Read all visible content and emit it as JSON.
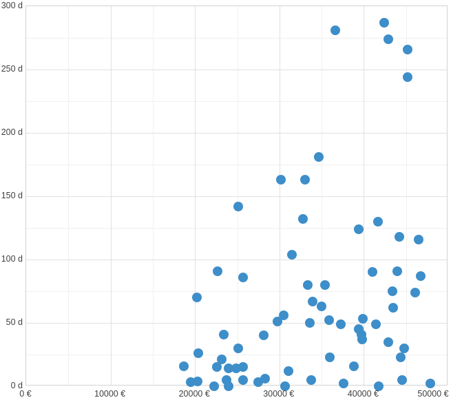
{
  "chart_data": {
    "type": "scatter",
    "title": "",
    "xlabel": "",
    "ylabel": "",
    "x_unit": "€",
    "y_unit": "d",
    "xlim": [
      0,
      50000
    ],
    "ylim": [
      0,
      300
    ],
    "x_major_step": 10000,
    "x_minor_step": 5000,
    "y_major_step": 50,
    "y_minor_step": 25,
    "grid": true,
    "legend": "none",
    "x_tick_labels": [
      "0 €",
      "10000 €",
      "20000 €",
      "30000 €",
      "40000 €",
      "50000 €"
    ],
    "y_tick_labels": [
      "0 d",
      "50 d",
      "100 d",
      "150 d",
      "200 d",
      "250 d",
      "300 d"
    ],
    "point_color": "#3d8ec9",
    "points": [
      [
        18700,
        16
      ],
      [
        19500,
        3
      ],
      [
        20200,
        70
      ],
      [
        20300,
        4
      ],
      [
        20400,
        26
      ],
      [
        22300,
        0
      ],
      [
        22600,
        15
      ],
      [
        22700,
        91
      ],
      [
        23200,
        21
      ],
      [
        23400,
        41
      ],
      [
        23700,
        5
      ],
      [
        24000,
        0
      ],
      [
        24000,
        14
      ],
      [
        24900,
        14
      ],
      [
        25100,
        30
      ],
      [
        25100,
        142
      ],
      [
        25700,
        5
      ],
      [
        25700,
        15
      ],
      [
        25700,
        86
      ],
      [
        27500,
        3
      ],
      [
        28100,
        40
      ],
      [
        28300,
        6
      ],
      [
        29800,
        51
      ],
      [
        30200,
        163
      ],
      [
        30500,
        56
      ],
      [
        30700,
        0
      ],
      [
        31100,
        12
      ],
      [
        31500,
        104
      ],
      [
        32800,
        132
      ],
      [
        33000,
        163
      ],
      [
        33400,
        80
      ],
      [
        33600,
        50
      ],
      [
        33800,
        5
      ],
      [
        33900,
        67
      ],
      [
        34700,
        181
      ],
      [
        35000,
        63
      ],
      [
        35400,
        80
      ],
      [
        35900,
        52
      ],
      [
        36000,
        23
      ],
      [
        36600,
        281
      ],
      [
        37300,
        49
      ],
      [
        37600,
        2
      ],
      [
        38800,
        16
      ],
      [
        39400,
        45
      ],
      [
        39400,
        124
      ],
      [
        39700,
        41
      ],
      [
        39800,
        37
      ],
      [
        39900,
        53
      ],
      [
        41000,
        90
      ],
      [
        41400,
        49
      ],
      [
        41700,
        130
      ],
      [
        41800,
        0
      ],
      [
        42400,
        287
      ],
      [
        42900,
        35
      ],
      [
        42900,
        274
      ],
      [
        43400,
        75
      ],
      [
        43500,
        62
      ],
      [
        44000,
        91
      ],
      [
        44200,
        118
      ],
      [
        44400,
        23
      ],
      [
        44500,
        5
      ],
      [
        44800,
        30
      ],
      [
        45200,
        244
      ],
      [
        45200,
        266
      ],
      [
        46100,
        74
      ],
      [
        46500,
        116
      ],
      [
        46700,
        87
      ],
      [
        47900,
        2
      ]
    ]
  },
  "layout_colors": {
    "background": "#ffffff",
    "plot_border": "#d2d2d2",
    "grid_major": "#e0e0e0",
    "grid_minor": "#f0f0f0",
    "tick_label": "#404040"
  }
}
